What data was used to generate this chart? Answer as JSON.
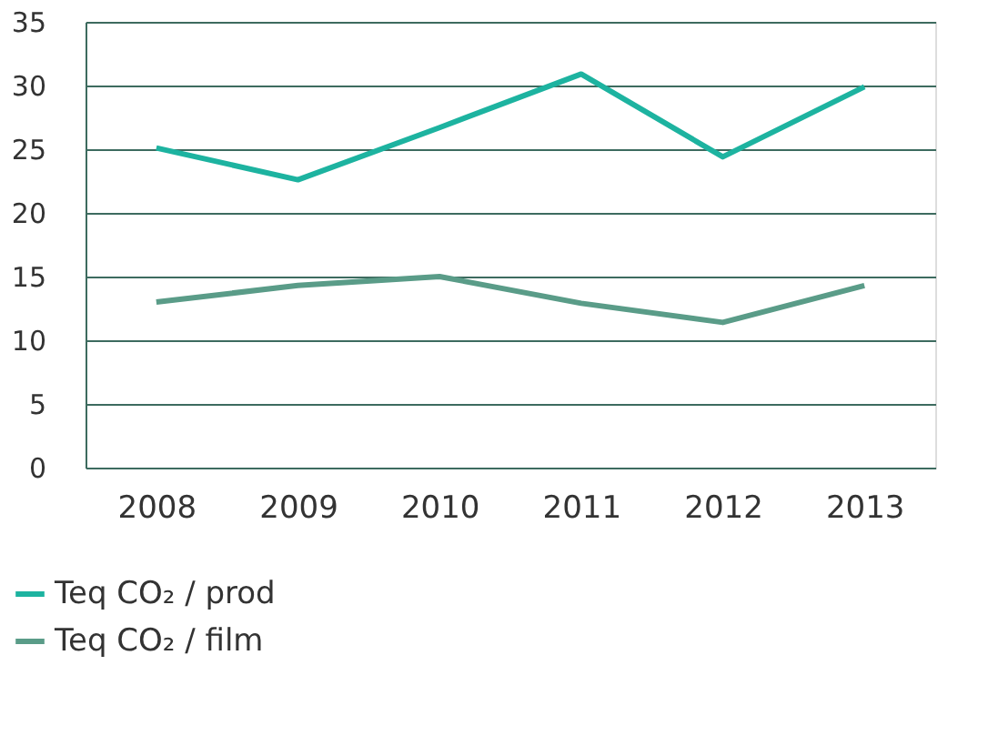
{
  "chart_data": {
    "type": "line",
    "categories": [
      "2008",
      "2009",
      "2010",
      "2011",
      "2012",
      "2013"
    ],
    "series": [
      {
        "name": "Teq CO₂ / prod",
        "color": "#1db3a0",
        "values": [
          25.1,
          22.6,
          26.7,
          30.9,
          24.4,
          29.9
        ]
      },
      {
        "name": "Teq CO₂ / film",
        "color": "#5a9c88",
        "values": [
          13.0,
          14.3,
          15.0,
          12.9,
          11.4,
          14.3
        ]
      }
    ],
    "ylim": [
      0,
      35
    ],
    "yticks": [
      0,
      5,
      10,
      15,
      20,
      25,
      30,
      35
    ],
    "grid": "y",
    "legend": "bottom",
    "marker": "none",
    "line_style": "solid"
  }
}
